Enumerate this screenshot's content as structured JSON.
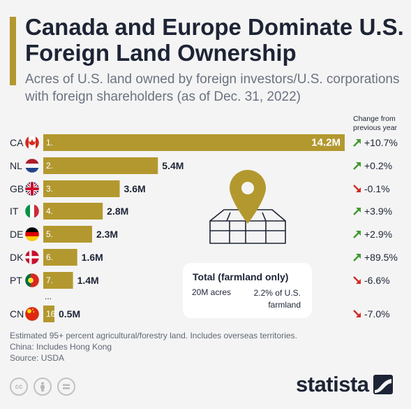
{
  "title": "Canada and Europe Dominate U.S. Foreign Land Ownership",
  "subtitle": "Acres of U.S. land owned by foreign investors/U.S. corporations with foreign shareholders (as of Dec. 31, 2022)",
  "change_header": [
    "Change from",
    "previous year"
  ],
  "ellipsis": "...",
  "total": {
    "title": "Total (farmland only)",
    "acres": "20M acres",
    "share": "2.2% of U.S. farmland"
  },
  "notes": [
    "Estimated 95+ percent agricultural/forestry land. Includes overseas territories.",
    "China: Includes Hong Kong",
    "Source: USDA"
  ],
  "brand": "statista",
  "license_icons": [
    "cc",
    "by",
    "nd"
  ],
  "colors": {
    "bar": "#b3982f",
    "title": "#1d2435",
    "up_arrow": "#3f9a2f",
    "down_arrow": "#d12b22",
    "box_bg": "#ffffff"
  },
  "chart_data": {
    "type": "bar",
    "orientation": "horizontal",
    "unit": "M acres",
    "categories": [
      "CA",
      "NL",
      "GB",
      "IT",
      "DE",
      "DK",
      "PT",
      "CN"
    ],
    "ranks": [
      "1.",
      "2.",
      "3.",
      "4.",
      "5.",
      "6.",
      "7.",
      "16."
    ],
    "values": [
      14.2,
      5.4,
      3.6,
      2.8,
      2.3,
      1.6,
      1.4,
      0.5
    ],
    "value_labels": [
      "14.2M",
      "5.4M",
      "3.6M",
      "2.8M",
      "2.3M",
      "1.6M",
      "1.4M",
      "0.5M"
    ],
    "changes": [
      10.7,
      0.2,
      -0.1,
      3.9,
      2.9,
      89.5,
      -6.6,
      -7.0
    ],
    "change_labels": [
      "+10.7%",
      "+0.2%",
      "-0.1%",
      "+3.9%",
      "+2.9%",
      "+89.5%",
      "-6.6%",
      "-7.0%"
    ],
    "flags": [
      "canada-flag",
      "netherlands-flag",
      "united-kingdom-flag",
      "italy-flag",
      "germany-flag",
      "denmark-flag",
      "portugal-flag",
      "china-flag"
    ],
    "xlim": [
      0,
      14.2
    ],
    "grid": false,
    "legend": "none"
  }
}
